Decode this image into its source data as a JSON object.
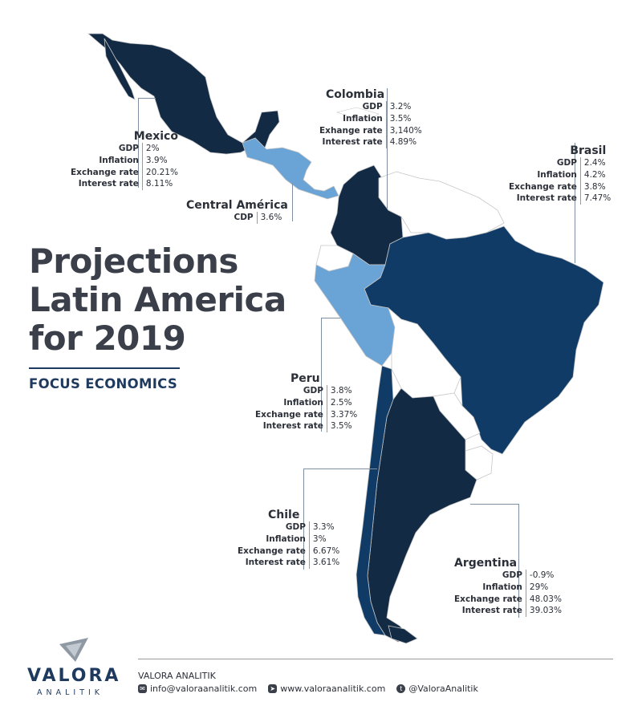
{
  "title_lines": [
    "Projections",
    "Latin America",
    "for 2019"
  ],
  "subtitle": "FOCUS ECONOMICS",
  "colors": {
    "dark_navy": "#132a44",
    "mid_blue": "#0f3b66",
    "light_blue": "#6aa3d5",
    "neutral": "#ffffff",
    "border": "#c6c6c6",
    "text": "#2b2f38"
  },
  "countries": {
    "mexico": {
      "name": "Mexico",
      "indicators": [
        {
          "label": "GDP",
          "value": "2%"
        },
        {
          "label": "Inflation",
          "value": "3.9%"
        },
        {
          "label": "Exchange rate",
          "value": "20.21%"
        },
        {
          "label": "Interest rate",
          "value": "8.11%"
        }
      ]
    },
    "colombia": {
      "name": "Colombia",
      "indicators": [
        {
          "label": "GDP",
          "value": "3.2%"
        },
        {
          "label": "Inflation",
          "value": "3.5%"
        },
        {
          "label": "Exhange rate",
          "value": "3,140%"
        },
        {
          "label": "Interest rate",
          "value": "4.89%"
        }
      ]
    },
    "brasil": {
      "name": "Brasil",
      "indicators": [
        {
          "label": "GDP",
          "value": "2.4%"
        },
        {
          "label": "Inflation",
          "value": "4.2%"
        },
        {
          "label": "Exchange rate",
          "value": "3.8%"
        },
        {
          "label": "Interest rate",
          "value": "7.47%"
        }
      ]
    },
    "central_america": {
      "name": "Central América",
      "indicators": [
        {
          "label": "CDP",
          "value": "3.6%"
        }
      ]
    },
    "peru": {
      "name": "Peru",
      "indicators": [
        {
          "label": "GDP",
          "value": "3.8%"
        },
        {
          "label": "Inflation",
          "value": "2.5%"
        },
        {
          "label": "Exchange rate",
          "value": "3.37%"
        },
        {
          "label": "Interest rate",
          "value": "3.5%"
        }
      ]
    },
    "chile": {
      "name": "Chile",
      "indicators": [
        {
          "label": "GDP",
          "value": "3.3%"
        },
        {
          "label": "Inflation",
          "value": "3%"
        },
        {
          "label": "Exchange rate",
          "value": "6.67%"
        },
        {
          "label": "Interest rate",
          "value": "3.61%"
        }
      ]
    },
    "argentina": {
      "name": "Argentina",
      "indicators": [
        {
          "label": "GDP",
          "value": "-0.9%"
        },
        {
          "label": "Inflation",
          "value": "29%"
        },
        {
          "label": "Exchange rate",
          "value": "48.03%"
        },
        {
          "label": "Interest rate",
          "value": "39.03%"
        }
      ]
    }
  },
  "logo": {
    "word": "VALORA",
    "sub": "ANALITIK"
  },
  "footer": {
    "brand": "VALORA ANALITIK",
    "email": "info@valoraanalitik.com",
    "website": "www.valoraanalitik.com",
    "twitter": "@ValoraAnalitik",
    "email_icon": "mail-icon",
    "website_icon": "cursor-icon",
    "twitter_icon": "twitter-icon"
  }
}
